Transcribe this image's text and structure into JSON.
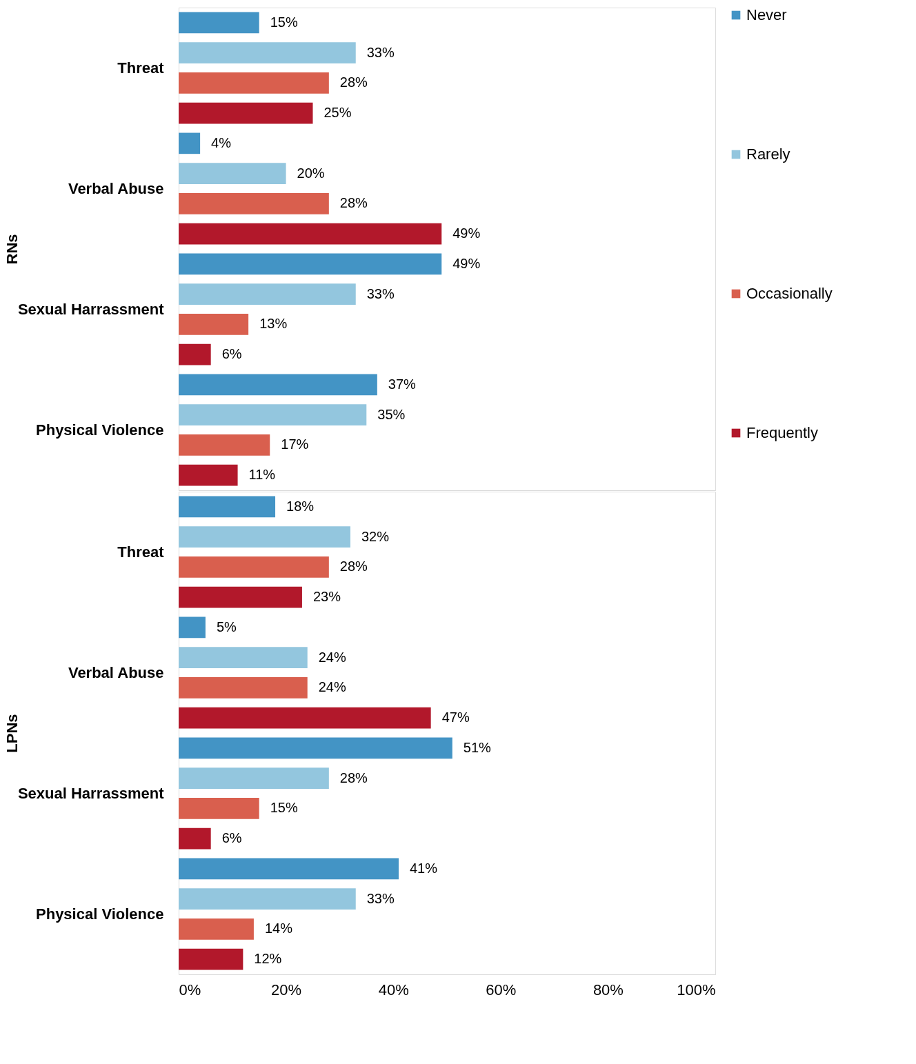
{
  "chart_data": [
    {
      "type": "bar",
      "orientation": "horizontal",
      "ylabel": "RNs",
      "categories": [
        "Threat",
        "Verbal Abuse",
        "Sexual Harrassment",
        "Physical Violence"
      ],
      "series": [
        {
          "name": "Never",
          "color": "#4394c5",
          "values": [
            15,
            4,
            49,
            37
          ],
          "value_labels": [
            "15%",
            "4%",
            "49%",
            "37%"
          ]
        },
        {
          "name": "Rarely",
          "color": "#93c6de",
          "values": [
            33,
            20,
            33,
            35
          ],
          "value_labels": [
            "33%",
            "20%",
            "33%",
            "35%"
          ]
        },
        {
          "name": "Occasionally",
          "color": "#d95f4e",
          "values": [
            28,
            28,
            13,
            17
          ],
          "value_labels": [
            "28%",
            "28%",
            "13%",
            "17%"
          ]
        },
        {
          "name": "Frequently",
          "color": "#b2182b",
          "values": [
            25,
            49,
            6,
            11
          ],
          "value_labels": [
            "25%",
            "49%",
            "6%",
            "11%"
          ]
        }
      ],
      "xlim": [
        0,
        100
      ],
      "tick_labels": "y",
      "legend": "right",
      "grid": false
    },
    {
      "type": "bar",
      "orientation": "horizontal",
      "ylabel": "LPNs",
      "categories": [
        "Threat",
        "Verbal Abuse",
        "Sexual Harrassment",
        "Physical Violence"
      ],
      "series": [
        {
          "name": "Never",
          "color": "#4394c5",
          "values": [
            18,
            5,
            51,
            41
          ],
          "value_labels": [
            "18%",
            "5%",
            "51%",
            "41%"
          ]
        },
        {
          "name": "Rarely",
          "color": "#93c6de",
          "values": [
            32,
            24,
            28,
            33
          ],
          "value_labels": [
            "32%",
            "24%",
            "28%",
            "33%"
          ]
        },
        {
          "name": "Occasionally",
          "color": "#d95f4e",
          "values": [
            28,
            24,
            15,
            14
          ],
          "value_labels": [
            "28%",
            "24%",
            "15%",
            "14%"
          ]
        },
        {
          "name": "Frequently",
          "color": "#b2182b",
          "values": [
            23,
            47,
            6,
            12
          ],
          "value_labels": [
            "23%",
            "47%",
            "6%",
            "12%"
          ]
        }
      ],
      "xlim": [
        0,
        100
      ],
      "xticks": [
        {
          "value": 0,
          "label": "0%"
        },
        {
          "value": 20,
          "label": "20%"
        },
        {
          "value": 40,
          "label": "40%"
        },
        {
          "value": 60,
          "label": "60%"
        },
        {
          "value": 80,
          "label": "80%"
        },
        {
          "value": 100,
          "label": "100%"
        }
      ],
      "legend": "right",
      "grid": false
    }
  ]
}
